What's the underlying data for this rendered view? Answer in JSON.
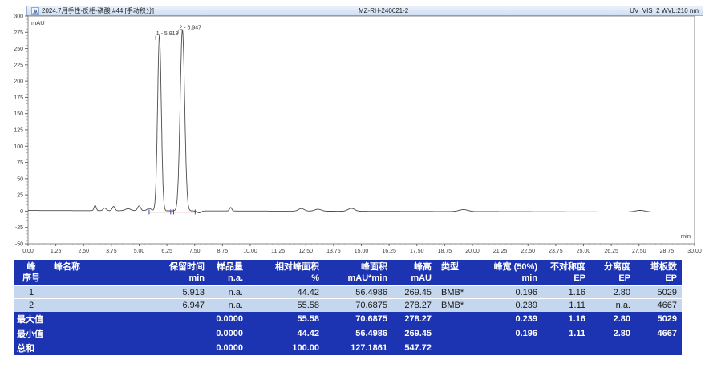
{
  "chart_header": {
    "left_title": "2024.7月手性-反相-磷酸 #44 [手动积分]",
    "center_title": "MZ-RH-240621-2",
    "right_title": "UV_VIS_2 WVL:210 nm"
  },
  "colors": {
    "table_header_bg": "#1c33b2",
    "table_row_bg": "#c4d7ef",
    "table_header_text": "#ffffff",
    "trace": "#4d4d4d",
    "integration_baseline": "#cc4444",
    "peak_marker": "#4040c0",
    "titlebar_bg_top": "#eaf1fb",
    "titlebar_bg_bottom": "#cfdff2",
    "titlebar_border": "#9ab0cc",
    "axis": "#8a8a8a"
  },
  "chart_data": {
    "type": "line",
    "title": "2024.7月手性-反相-磷酸 #44 [手动积分]",
    "y_axis_label": "mAU",
    "x_axis_label": "min",
    "x_range": [
      0,
      30
    ],
    "y_range": [
      -50,
      300
    ],
    "x_ticks": [
      "0.00",
      "1.25",
      "2.50",
      "3.75",
      "5.00",
      "6.25",
      "7.50",
      "8.75",
      "10.00",
      "11.25",
      "12.50",
      "13.75",
      "15.00",
      "16.25",
      "17.50",
      "18.75",
      "20.00",
      "21.25",
      "22.50",
      "23.75",
      "25.00",
      "26.25",
      "27.50",
      "28.75",
      "30.00"
    ],
    "y_ticks": [
      300,
      275,
      250,
      225,
      200,
      175,
      150,
      125,
      100,
      75,
      50,
      25,
      0,
      -25,
      -50
    ],
    "x_minor_step": 0.25,
    "y_minor_step": 5,
    "grid": false,
    "legend": "none",
    "baseline_drift": {
      "start_mau": 1.0,
      "end_mau": -1.5
    },
    "peaks": [
      {
        "number": 1,
        "retention_min": 5.913,
        "height_mau": 269.45,
        "width_50_min": 0.196,
        "label": "1 - 5.913"
      },
      {
        "number": 2,
        "retention_min": 6.947,
        "height_mau": 278.27,
        "width_50_min": 0.239,
        "label": "2 - 6.947"
      }
    ],
    "minor_features": [
      {
        "x": 3.02,
        "h": 8.0,
        "w": 0.05
      },
      {
        "x": 3.45,
        "h": 4.0,
        "w": 0.07
      },
      {
        "x": 3.85,
        "h": 6.5,
        "w": 0.06
      },
      {
        "x": 4.5,
        "h": 3.0,
        "w": 0.13
      },
      {
        "x": 5.0,
        "h": 7.5,
        "w": 0.07
      },
      {
        "x": 5.45,
        "h": 3.5,
        "w": 0.1
      },
      {
        "x": 7.7,
        "h": -3.0,
        "w": 0.09
      },
      {
        "x": 9.12,
        "h": 5.5,
        "w": 0.05
      },
      {
        "x": 12.3,
        "h": 4.0,
        "w": 0.13
      },
      {
        "x": 13.05,
        "h": 3.0,
        "w": 0.15
      },
      {
        "x": 14.55,
        "h": 4.5,
        "w": 0.15
      },
      {
        "x": 19.6,
        "h": 3.0,
        "w": 0.2
      },
      {
        "x": 27.55,
        "h": 2.5,
        "w": 0.22
      }
    ],
    "integration_baselines": [
      {
        "from_min": 5.45,
        "to_min": 6.42
      },
      {
        "from_min": 6.55,
        "to_min": 7.52
      }
    ]
  },
  "table": {
    "headers": [
      [
        "峰",
        "序号"
      ],
      [
        "峰名称",
        ""
      ],
      [
        "保留时间",
        "min"
      ],
      [
        "样品量",
        "n.a."
      ],
      [
        "相对峰面积",
        "%"
      ],
      [
        "峰面积",
        "mAU*min"
      ],
      [
        "峰高",
        "mAU"
      ],
      [
        "类型",
        ""
      ],
      [
        "峰宽 (50%)",
        "min"
      ],
      [
        "不对称度",
        "EP"
      ],
      [
        "分离度",
        "EP"
      ],
      [
        "塔板数",
        "EP"
      ]
    ],
    "rows": [
      [
        "1",
        "",
        "5.913",
        "n.a.",
        "44.42",
        "56.4986",
        "269.45",
        "BMB*",
        "0.196",
        "1.16",
        "2.80",
        "5029"
      ],
      [
        "2",
        "",
        "6.947",
        "n.a.",
        "55.58",
        "70.6875",
        "278.27",
        "BMB*",
        "0.239",
        "1.11",
        "n.a.",
        "4667"
      ]
    ],
    "summary_rows": [
      [
        "最大值",
        "",
        "",
        "0.0000",
        "55.58",
        "70.6875",
        "278.27",
        "",
        "0.239",
        "1.16",
        "2.80",
        "5029"
      ],
      [
        "最小值",
        "",
        "",
        "0.0000",
        "44.42",
        "56.4986",
        "269.45",
        "",
        "0.196",
        "1.11",
        "2.80",
        "4667"
      ],
      [
        "总和",
        "",
        "",
        "0.0000",
        "100.00",
        "127.1861",
        "547.72",
        "",
        "",
        "",
        "",
        ""
      ]
    ]
  }
}
